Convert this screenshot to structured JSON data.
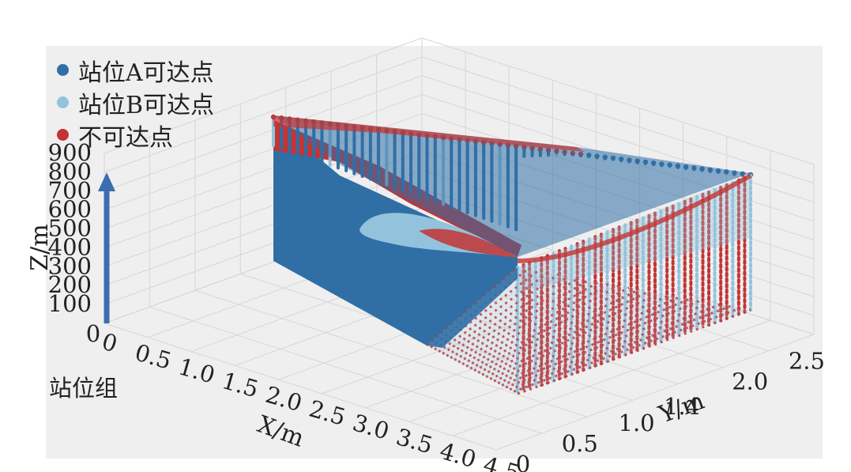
{
  "chart_data": {
    "type": "scatter",
    "dimension": "3d",
    "series": [
      {
        "name": "站位A可达点",
        "color": "#2f6fa6"
      },
      {
        "name": "站位B可达点",
        "color": "#93c3dc"
      },
      {
        "name": "不可达点",
        "color": "#c33434"
      }
    ],
    "xlabel": "X/m",
    "ylabel": "Y/m",
    "zlabel": "Z/m",
    "x_ticks": [
      "0",
      "0.5",
      "1.0",
      "1.5",
      "2.0",
      "2.5",
      "3.0",
      "3.5",
      "4.0",
      "4.5"
    ],
    "y_ticks": [
      "0",
      "0.5",
      "1.0",
      "1.4",
      "2.0",
      "2.5"
    ],
    "z_ticks": [
      "100",
      "200",
      "300",
      "400",
      "500",
      "600",
      "700",
      "800",
      "900"
    ],
    "z_origin": "0",
    "xlim": [
      0,
      4.5
    ],
    "ylim": [
      0,
      2.8
    ],
    "zlim": [
      0,
      900
    ],
    "grid": true,
    "legend_position": "top-left",
    "annotation": "站位组"
  }
}
